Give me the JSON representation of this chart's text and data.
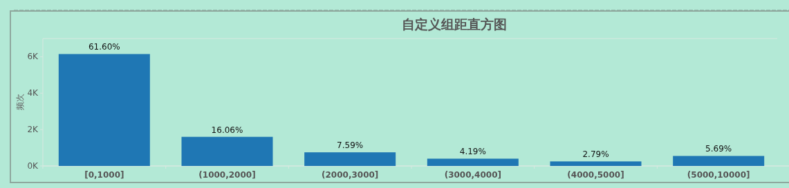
{
  "chart_data": {
    "type": "bar",
    "title": "自定义组距直方图",
    "ylabel": "频次",
    "categories": [
      "[0,1000]",
      "(1000,2000]",
      "(2000,3000]",
      "(3000,4000]",
      "(4000,5000]",
      "(5000,10000]"
    ],
    "values": [
      6150,
      1600,
      750,
      400,
      250,
      550
    ],
    "annotations": [
      {
        "text": "61.60%",
        "x": "[0,1000]",
        "y": 6150
      },
      {
        "text": "16.06%",
        "x": "(1000,2000]",
        "y": 1600
      },
      {
        "text": "7.59%",
        "x": "(2000,3000]",
        "y": 750
      },
      {
        "text": "4.19%",
        "x": "(3000,4000]",
        "y": 400
      },
      {
        "text": "2.79%",
        "x": "(4000,5000]",
        "y": 250
      },
      {
        "text": "5.69%",
        "x": "(5000,10000]",
        "y": 550
      }
    ],
    "color": "#1f77b4",
    "ylim": [
      0,
      7000
    ],
    "yticks": [
      {
        "value": 0,
        "label": "0K"
      },
      {
        "value": 2000,
        "label": "2K"
      },
      {
        "value": 4000,
        "label": "4K"
      },
      {
        "value": 6000,
        "label": "6K"
      }
    ]
  }
}
